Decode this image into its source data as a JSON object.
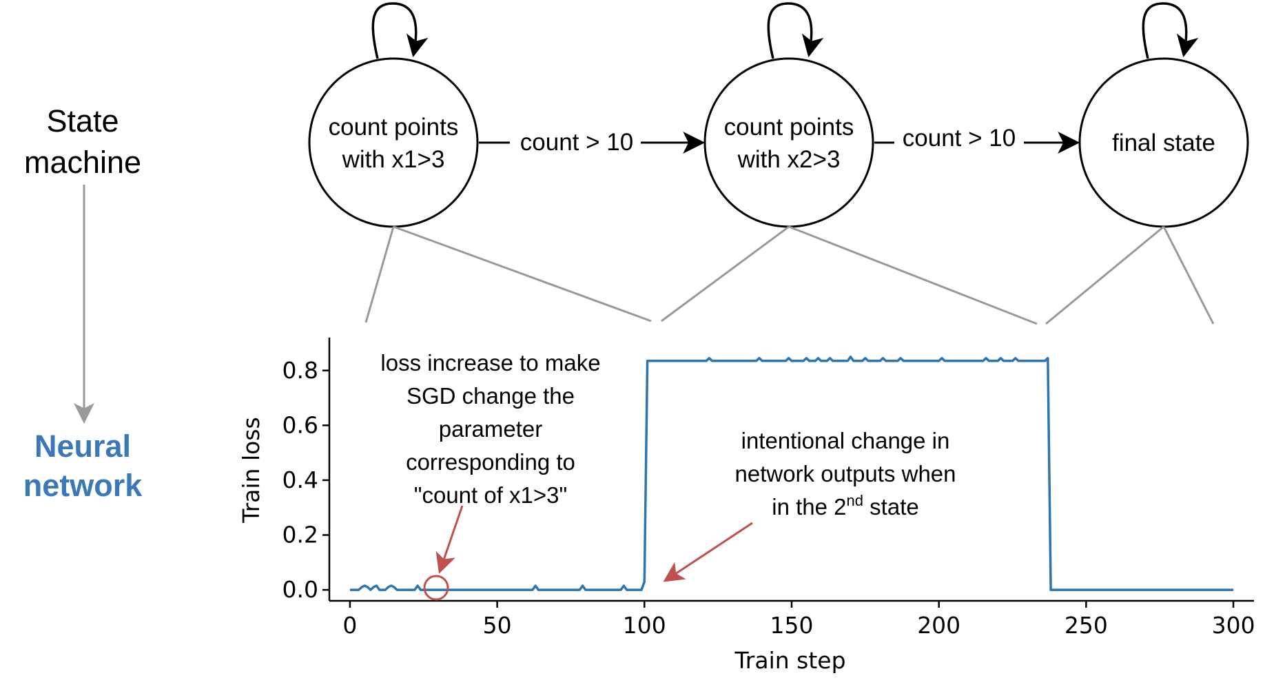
{
  "left": {
    "state_machine_lines": [
      "State",
      "machine"
    ],
    "neural_network_lines": [
      "Neural",
      "network"
    ],
    "neural_color": "#3a78b8"
  },
  "states": [
    {
      "lines": [
        "count points",
        "with x1>3"
      ]
    },
    {
      "lines": [
        "count points",
        "with x2>3"
      ]
    },
    {
      "lines": [
        "final state"
      ]
    }
  ],
  "transitions": [
    {
      "label": "count > 10"
    },
    {
      "label": "count > 10"
    }
  ],
  "annotations": {
    "loss_increase": [
      "loss increase to make",
      "SGD change the",
      "parameter",
      "corresponding to",
      "\"count of x1>3\""
    ],
    "intentional_lines": [
      "intentional change in",
      "network outputs when"
    ],
    "intentional_last": {
      "pre": "in the 2",
      "sup": "nd",
      "post": " state"
    }
  },
  "colors": {
    "series": "#2d74b0",
    "annotation": "#c0504d",
    "connector": "#999999",
    "arrow_gray": "#9a9a9a"
  },
  "chart_data": {
    "type": "line",
    "xlabel": "Train step",
    "ylabel": "Train loss",
    "xlim": [
      -7,
      307
    ],
    "ylim": [
      -0.04,
      0.92
    ],
    "xticks": [
      0,
      50,
      100,
      150,
      200,
      250,
      300
    ],
    "yticks": [
      0.0,
      0.2,
      0.4,
      0.6,
      0.8
    ],
    "xtick_labels": [
      "0",
      "50",
      "100",
      "150",
      "200",
      "250",
      "300"
    ],
    "ytick_labels": [
      "0.0",
      "0.2",
      "0.4",
      "0.6",
      "0.8"
    ],
    "grid": false,
    "series": [
      {
        "x": [
          0,
          3,
          4,
          5,
          6,
          7,
          8,
          9,
          10,
          12,
          13,
          14,
          15,
          16,
          17,
          22,
          23,
          24,
          62,
          63,
          64,
          78,
          79,
          80,
          92,
          93,
          94,
          99,
          100,
          101,
          102,
          121,
          122,
          123,
          138,
          139,
          140,
          148,
          149,
          150,
          154,
          155,
          156,
          158,
          159,
          160,
          162,
          163,
          164,
          169,
          170,
          171,
          174,
          175,
          176,
          180,
          181,
          182,
          186,
          187,
          188,
          200,
          201,
          202,
          215,
          216,
          217,
          220,
          221,
          222,
          225,
          226,
          227,
          236,
          237,
          238,
          300
        ],
        "y": [
          0,
          0,
          0.01,
          0.015,
          0.01,
          0,
          0.01,
          0.015,
          0,
          0,
          0.01,
          0.015,
          0.01,
          0,
          0,
          0,
          0.015,
          0,
          0,
          0.015,
          0,
          0,
          0.015,
          0,
          0,
          0.015,
          0,
          0,
          0.03,
          0.835,
          0.835,
          0.835,
          0.845,
          0.835,
          0.835,
          0.845,
          0.835,
          0.835,
          0.845,
          0.835,
          0.835,
          0.845,
          0.835,
          0.835,
          0.845,
          0.835,
          0.835,
          0.845,
          0.835,
          0.835,
          0.85,
          0.835,
          0.835,
          0.845,
          0.835,
          0.835,
          0.845,
          0.835,
          0.835,
          0.845,
          0.835,
          0.835,
          0.845,
          0.835,
          0.835,
          0.845,
          0.835,
          0.835,
          0.845,
          0.835,
          0.835,
          0.845,
          0.835,
          0.835,
          0.845,
          0,
          0
        ]
      }
    ]
  }
}
